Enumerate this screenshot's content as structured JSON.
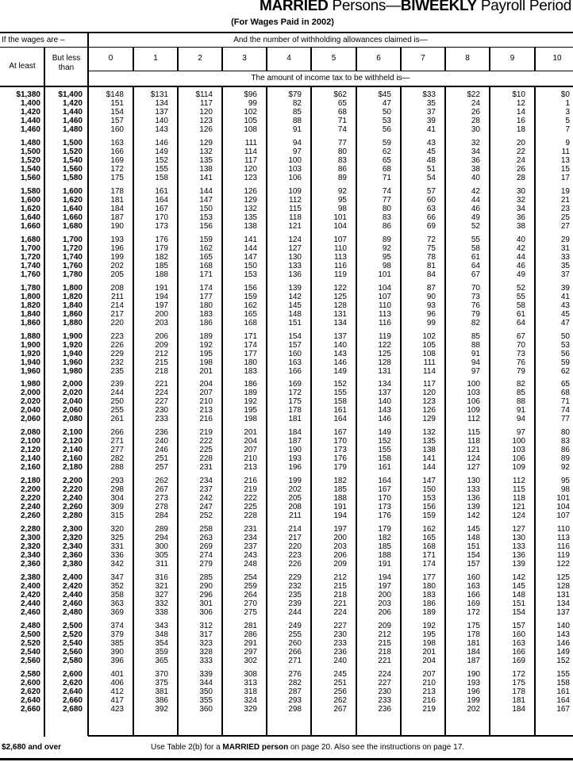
{
  "header": {
    "title_bold_1": "MARRIED",
    "title_mid": " Persons—",
    "title_bold_2": "BIWEEKLY",
    "title_end": " Payroll Period",
    "subtitle": "(For Wages Paid in 2002)"
  },
  "table": {
    "wages_header": "If the wages are –",
    "allowances_header": "And the number of withholding allowances claimed is—",
    "at_least_label": "At least",
    "but_less_label": "But less than",
    "amount_header": "The amount of income tax to be withheld is—",
    "allowance_columns": [
      "0",
      "1",
      "2",
      "3",
      "4",
      "5",
      "6",
      "7",
      "8",
      "9",
      "10"
    ],
    "rows": [
      [
        "$1,380",
        "$1,400",
        "$148",
        "$131",
        "$114",
        "$96",
        "$79",
        "$62",
        "$45",
        "$33",
        "$22",
        "$10",
        "$0"
      ],
      [
        "1,400",
        "1,420",
        "151",
        "134",
        "117",
        "99",
        "82",
        "65",
        "47",
        "35",
        "24",
        "12",
        "1"
      ],
      [
        "1,420",
        "1,440",
        "154",
        "137",
        "120",
        "102",
        "85",
        "68",
        "50",
        "37",
        "26",
        "14",
        "3"
      ],
      [
        "1,440",
        "1,460",
        "157",
        "140",
        "123",
        "105",
        "88",
        "71",
        "53",
        "39",
        "28",
        "16",
        "5"
      ],
      [
        "1,460",
        "1,480",
        "160",
        "143",
        "126",
        "108",
        "91",
        "74",
        "56",
        "41",
        "30",
        "18",
        "7"
      ],
      [
        "1,480",
        "1,500",
        "163",
        "146",
        "129",
        "111",
        "94",
        "77",
        "59",
        "43",
        "32",
        "20",
        "9"
      ],
      [
        "1,500",
        "1,520",
        "166",
        "149",
        "132",
        "114",
        "97",
        "80",
        "62",
        "45",
        "34",
        "22",
        "11"
      ],
      [
        "1,520",
        "1,540",
        "169",
        "152",
        "135",
        "117",
        "100",
        "83",
        "65",
        "48",
        "36",
        "24",
        "13"
      ],
      [
        "1,540",
        "1,560",
        "172",
        "155",
        "138",
        "120",
        "103",
        "86",
        "68",
        "51",
        "38",
        "26",
        "15"
      ],
      [
        "1,560",
        "1,580",
        "175",
        "158",
        "141",
        "123",
        "106",
        "89",
        "71",
        "54",
        "40",
        "28",
        "17"
      ],
      [
        "1,580",
        "1,600",
        "178",
        "161",
        "144",
        "126",
        "109",
        "92",
        "74",
        "57",
        "42",
        "30",
        "19"
      ],
      [
        "1,600",
        "1,620",
        "181",
        "164",
        "147",
        "129",
        "112",
        "95",
        "77",
        "60",
        "44",
        "32",
        "21"
      ],
      [
        "1,620",
        "1,640",
        "184",
        "167",
        "150",
        "132",
        "115",
        "98",
        "80",
        "63",
        "46",
        "34",
        "23"
      ],
      [
        "1,640",
        "1,660",
        "187",
        "170",
        "153",
        "135",
        "118",
        "101",
        "83",
        "66",
        "49",
        "36",
        "25"
      ],
      [
        "1,660",
        "1,680",
        "190",
        "173",
        "156",
        "138",
        "121",
        "104",
        "86",
        "69",
        "52",
        "38",
        "27"
      ],
      [
        "1,680",
        "1,700",
        "193",
        "176",
        "159",
        "141",
        "124",
        "107",
        "89",
        "72",
        "55",
        "40",
        "29"
      ],
      [
        "1,700",
        "1,720",
        "196",
        "179",
        "162",
        "144",
        "127",
        "110",
        "92",
        "75",
        "58",
        "42",
        "31"
      ],
      [
        "1,720",
        "1,740",
        "199",
        "182",
        "165",
        "147",
        "130",
        "113",
        "95",
        "78",
        "61",
        "44",
        "33"
      ],
      [
        "1,740",
        "1,760",
        "202",
        "185",
        "168",
        "150",
        "133",
        "116",
        "98",
        "81",
        "64",
        "46",
        "35"
      ],
      [
        "1,760",
        "1,780",
        "205",
        "188",
        "171",
        "153",
        "136",
        "119",
        "101",
        "84",
        "67",
        "49",
        "37"
      ],
      [
        "1,780",
        "1,800",
        "208",
        "191",
        "174",
        "156",
        "139",
        "122",
        "104",
        "87",
        "70",
        "52",
        "39"
      ],
      [
        "1,800",
        "1,820",
        "211",
        "194",
        "177",
        "159",
        "142",
        "125",
        "107",
        "90",
        "73",
        "55",
        "41"
      ],
      [
        "1,820",
        "1,840",
        "214",
        "197",
        "180",
        "162",
        "145",
        "128",
        "110",
        "93",
        "76",
        "58",
        "43"
      ],
      [
        "1,840",
        "1,860",
        "217",
        "200",
        "183",
        "165",
        "148",
        "131",
        "113",
        "96",
        "79",
        "61",
        "45"
      ],
      [
        "1,860",
        "1,880",
        "220",
        "203",
        "186",
        "168",
        "151",
        "134",
        "116",
        "99",
        "82",
        "64",
        "47"
      ],
      [
        "1,880",
        "1,900",
        "223",
        "206",
        "189",
        "171",
        "154",
        "137",
        "119",
        "102",
        "85",
        "67",
        "50"
      ],
      [
        "1,900",
        "1,920",
        "226",
        "209",
        "192",
        "174",
        "157",
        "140",
        "122",
        "105",
        "88",
        "70",
        "53"
      ],
      [
        "1,920",
        "1,940",
        "229",
        "212",
        "195",
        "177",
        "160",
        "143",
        "125",
        "108",
        "91",
        "73",
        "56"
      ],
      [
        "1,940",
        "1,960",
        "232",
        "215",
        "198",
        "180",
        "163",
        "146",
        "128",
        "111",
        "94",
        "76",
        "59"
      ],
      [
        "1,960",
        "1,980",
        "235",
        "218",
        "201",
        "183",
        "166",
        "149",
        "131",
        "114",
        "97",
        "79",
        "62"
      ],
      [
        "1,980",
        "2,000",
        "239",
        "221",
        "204",
        "186",
        "169",
        "152",
        "134",
        "117",
        "100",
        "82",
        "65"
      ],
      [
        "2,000",
        "2,020",
        "244",
        "224",
        "207",
        "189",
        "172",
        "155",
        "137",
        "120",
        "103",
        "85",
        "68"
      ],
      [
        "2,020",
        "2,040",
        "250",
        "227",
        "210",
        "192",
        "175",
        "158",
        "140",
        "123",
        "106",
        "88",
        "71"
      ],
      [
        "2,040",
        "2,060",
        "255",
        "230",
        "213",
        "195",
        "178",
        "161",
        "143",
        "126",
        "109",
        "91",
        "74"
      ],
      [
        "2,060",
        "2,080",
        "261",
        "233",
        "216",
        "198",
        "181",
        "164",
        "146",
        "129",
        "112",
        "94",
        "77"
      ],
      [
        "2,080",
        "2,100",
        "266",
        "236",
        "219",
        "201",
        "184",
        "167",
        "149",
        "132",
        "115",
        "97",
        "80"
      ],
      [
        "2,100",
        "2,120",
        "271",
        "240",
        "222",
        "204",
        "187",
        "170",
        "152",
        "135",
        "118",
        "100",
        "83"
      ],
      [
        "2,120",
        "2,140",
        "277",
        "246",
        "225",
        "207",
        "190",
        "173",
        "155",
        "138",
        "121",
        "103",
        "86"
      ],
      [
        "2,140",
        "2,160",
        "282",
        "251",
        "228",
        "210",
        "193",
        "176",
        "158",
        "141",
        "124",
        "106",
        "89"
      ],
      [
        "2,160",
        "2,180",
        "288",
        "257",
        "231",
        "213",
        "196",
        "179",
        "161",
        "144",
        "127",
        "109",
        "92"
      ],
      [
        "2,180",
        "2,200",
        "293",
        "262",
        "234",
        "216",
        "199",
        "182",
        "164",
        "147",
        "130",
        "112",
        "95"
      ],
      [
        "2,200",
        "2,220",
        "298",
        "267",
        "237",
        "219",
        "202",
        "185",
        "167",
        "150",
        "133",
        "115",
        "98"
      ],
      [
        "2,220",
        "2,240",
        "304",
        "273",
        "242",
        "222",
        "205",
        "188",
        "170",
        "153",
        "136",
        "118",
        "101"
      ],
      [
        "2,240",
        "2,260",
        "309",
        "278",
        "247",
        "225",
        "208",
        "191",
        "173",
        "156",
        "139",
        "121",
        "104"
      ],
      [
        "2,260",
        "2,280",
        "315",
        "284",
        "252",
        "228",
        "211",
        "194",
        "176",
        "159",
        "142",
        "124",
        "107"
      ],
      [
        "2,280",
        "2,300",
        "320",
        "289",
        "258",
        "231",
        "214",
        "197",
        "179",
        "162",
        "145",
        "127",
        "110"
      ],
      [
        "2,300",
        "2,320",
        "325",
        "294",
        "263",
        "234",
        "217",
        "200",
        "182",
        "165",
        "148",
        "130",
        "113"
      ],
      [
        "2,320",
        "2,340",
        "331",
        "300",
        "269",
        "237",
        "220",
        "203",
        "185",
        "168",
        "151",
        "133",
        "116"
      ],
      [
        "2,340",
        "2,360",
        "336",
        "305",
        "274",
        "243",
        "223",
        "206",
        "188",
        "171",
        "154",
        "136",
        "119"
      ],
      [
        "2,360",
        "2,380",
        "342",
        "311",
        "279",
        "248",
        "226",
        "209",
        "191",
        "174",
        "157",
        "139",
        "122"
      ],
      [
        "2,380",
        "2,400",
        "347",
        "316",
        "285",
        "254",
        "229",
        "212",
        "194",
        "177",
        "160",
        "142",
        "125"
      ],
      [
        "2,400",
        "2,420",
        "352",
        "321",
        "290",
        "259",
        "232",
        "215",
        "197",
        "180",
        "163",
        "145",
        "128"
      ],
      [
        "2,420",
        "2,440",
        "358",
        "327",
        "296",
        "264",
        "235",
        "218",
        "200",
        "183",
        "166",
        "148",
        "131"
      ],
      [
        "2,440",
        "2,460",
        "363",
        "332",
        "301",
        "270",
        "239",
        "221",
        "203",
        "186",
        "169",
        "151",
        "134"
      ],
      [
        "2,460",
        "2,480",
        "369",
        "338",
        "306",
        "275",
        "244",
        "224",
        "206",
        "189",
        "172",
        "154",
        "137"
      ],
      [
        "2,480",
        "2,500",
        "374",
        "343",
        "312",
        "281",
        "249",
        "227",
        "209",
        "192",
        "175",
        "157",
        "140"
      ],
      [
        "2,500",
        "2,520",
        "379",
        "348",
        "317",
        "286",
        "255",
        "230",
        "212",
        "195",
        "178",
        "160",
        "143"
      ],
      [
        "2,520",
        "2,540",
        "385",
        "354",
        "323",
        "291",
        "260",
        "233",
        "215",
        "198",
        "181",
        "163",
        "146"
      ],
      [
        "2,540",
        "2,560",
        "390",
        "359",
        "328",
        "297",
        "266",
        "236",
        "218",
        "201",
        "184",
        "166",
        "149"
      ],
      [
        "2,560",
        "2,580",
        "396",
        "365",
        "333",
        "302",
        "271",
        "240",
        "221",
        "204",
        "187",
        "169",
        "152"
      ],
      [
        "2,580",
        "2,600",
        "401",
        "370",
        "339",
        "308",
        "276",
        "245",
        "224",
        "207",
        "190",
        "172",
        "155"
      ],
      [
        "2,600",
        "2,620",
        "406",
        "375",
        "344",
        "313",
        "282",
        "251",
        "227",
        "210",
        "193",
        "175",
        "158"
      ],
      [
        "2,620",
        "2,640",
        "412",
        "381",
        "350",
        "318",
        "287",
        "256",
        "230",
        "213",
        "196",
        "178",
        "161"
      ],
      [
        "2,640",
        "2,660",
        "417",
        "386",
        "355",
        "324",
        "293",
        "262",
        "233",
        "216",
        "199",
        "181",
        "164"
      ],
      [
        "2,660",
        "2,680",
        "423",
        "392",
        "360",
        "329",
        "298",
        "267",
        "236",
        "219",
        "202",
        "184",
        "167"
      ]
    ]
  },
  "footer": {
    "over_label": "$2,680 and over",
    "note_pre": "Use Table 2(b) for a ",
    "note_bold": "MARRIED person",
    "note_post": " on page 20. Also see the instructions on page 17."
  }
}
